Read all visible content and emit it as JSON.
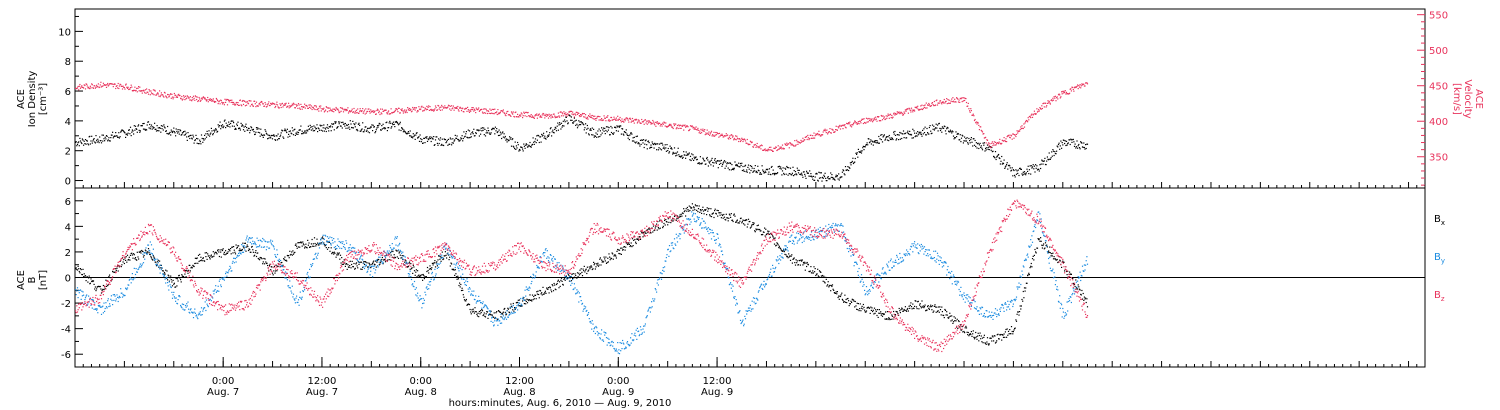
{
  "chart_data": [
    {
      "type": "scatter",
      "panel": "top",
      "ylabel_left": [
        "ACE",
        "Ion Density",
        "[cm⁻³]"
      ],
      "ylabel_right": [
        "ACE",
        "Velocity",
        "[km/s]"
      ],
      "ylim_left": [
        -0.5,
        11.5
      ],
      "ylim_right": [
        306,
        558
      ],
      "yticks_left": [
        "0",
        "2",
        "4",
        "6",
        "8",
        "10"
      ],
      "yticks_right": [
        "350",
        "400",
        "450",
        "500",
        "550"
      ],
      "series": [
        {
          "color": "#000000",
          "axis": "left",
          "x": [
            0,
            3,
            6,
            9,
            12,
            15,
            18,
            21,
            24,
            27,
            30,
            33,
            36,
            39,
            42,
            45,
            48,
            51,
            54,
            57,
            60,
            63,
            66,
            69,
            72,
            75,
            78,
            81,
            84,
            87,
            90,
            93,
            96,
            99,
            102,
            105,
            108,
            111,
            114,
            117,
            120,
            123
          ],
          "y": [
            2.6,
            2.8,
            3.2,
            3.8,
            3.3,
            2.7,
            3.9,
            3.5,
            3.0,
            3.4,
            3.6,
            3.8,
            3.5,
            3.8,
            2.8,
            2.6,
            3.2,
            3.4,
            2.2,
            3.0,
            4.2,
            3.2,
            3.5,
            2.5,
            2.2,
            1.5,
            1.2,
            0.9,
            0.7,
            0.7,
            0.3,
            0.3,
            2.5,
            3.0,
            3.2,
            3.6,
            2.8,
            2.2,
            0.5,
            0.9,
            2.6,
            2.4
          ]
        },
        {
          "color": "#e8335c",
          "axis": "right",
          "x": [
            0,
            3,
            6,
            9,
            12,
            15,
            18,
            21,
            24,
            27,
            30,
            33,
            36,
            39,
            42,
            45,
            48,
            51,
            54,
            57,
            60,
            63,
            66,
            69,
            72,
            75,
            78,
            81,
            84,
            87,
            90,
            93,
            96,
            99,
            102,
            105,
            108,
            111,
            114,
            117,
            120,
            123
          ],
          "y": [
            448,
            452,
            450,
            442,
            436,
            432,
            428,
            426,
            424,
            422,
            418,
            416,
            414,
            415,
            418,
            420,
            417,
            414,
            410,
            408,
            412,
            406,
            404,
            400,
            395,
            390,
            382,
            375,
            360,
            368,
            382,
            392,
            402,
            408,
            418,
            428,
            432,
            366,
            380,
            418,
            440,
            455
          ]
        }
      ]
    },
    {
      "type": "scatter",
      "panel": "bottom",
      "ylabel_left": [
        "ACE",
        "B",
        "[nT]"
      ],
      "ylim_left": [
        -7,
        7
      ],
      "yticks_left": [
        "-6",
        "-4",
        "-2",
        "0",
        "2",
        "4",
        "6"
      ],
      "legend": [
        {
          "label": "B",
          "sub": "x",
          "color": "#000000"
        },
        {
          "label": "B",
          "sub": "y",
          "color": "#1a8be0"
        },
        {
          "label": "B",
          "sub": "z",
          "color": "#e8335c"
        }
      ],
      "series": [
        {
          "color": "#000000",
          "x": [
            0,
            3,
            6,
            9,
            12,
            15,
            18,
            21,
            24,
            27,
            30,
            33,
            36,
            39,
            42,
            45,
            48,
            51,
            54,
            57,
            60,
            63,
            66,
            69,
            72,
            75,
            78,
            81,
            84,
            87,
            90,
            93,
            96,
            99,
            102,
            105,
            108,
            111,
            114,
            117,
            120,
            123
          ],
          "y": [
            1.0,
            -1.0,
            1.5,
            2.0,
            -0.5,
            1.5,
            2.0,
            2.5,
            0.5,
            2.5,
            3.0,
            1.0,
            1.0,
            2.0,
            0.0,
            2.0,
            -2.5,
            -3.0,
            -2.0,
            -1.0,
            0.0,
            1.0,
            2.0,
            3.5,
            4.5,
            5.5,
            5.0,
            4.5,
            3.5,
            1.5,
            0.5,
            -1.5,
            -2.5,
            -3.0,
            -2.0,
            -2.5,
            -4.0,
            -5.0,
            -4.0,
            3.0,
            1.0,
            -2.0
          ]
        },
        {
          "color": "#1a8be0",
          "x": [
            0,
            3,
            6,
            9,
            12,
            15,
            18,
            21,
            24,
            27,
            30,
            33,
            36,
            39,
            42,
            45,
            48,
            51,
            54,
            57,
            60,
            63,
            66,
            69,
            72,
            75,
            78,
            81,
            84,
            87,
            90,
            93,
            96,
            99,
            102,
            105,
            108,
            111,
            114,
            117,
            120,
            123
          ],
          "y": [
            -1.0,
            -2.5,
            -1.0,
            2.5,
            -1.5,
            -3.0,
            0.0,
            3.0,
            2.5,
            -2.0,
            3.0,
            2.5,
            0.5,
            3.0,
            -2.0,
            2.5,
            -1.0,
            -3.5,
            -2.0,
            2.0,
            0.0,
            -4.0,
            -5.5,
            -4.0,
            2.0,
            5.0,
            3.0,
            -3.5,
            0.0,
            3.0,
            3.5,
            4.0,
            -1.0,
            1.0,
            2.5,
            1.5,
            -1.5,
            -3.0,
            -2.0,
            5.0,
            -3.0,
            1.5
          ]
        },
        {
          "color": "#e8335c",
          "x": [
            0,
            3,
            6,
            9,
            12,
            15,
            18,
            21,
            24,
            27,
            30,
            33,
            36,
            39,
            42,
            45,
            48,
            51,
            54,
            57,
            60,
            63,
            66,
            69,
            72,
            75,
            78,
            81,
            84,
            87,
            90,
            93,
            96,
            99,
            102,
            105,
            108,
            111,
            114,
            117,
            120,
            123
          ],
          "y": [
            -2.5,
            -1.5,
            2.0,
            4.0,
            2.0,
            -1.0,
            -2.5,
            -2.0,
            1.0,
            0.0,
            -2.0,
            1.5,
            2.5,
            1.0,
            1.5,
            2.5,
            0.5,
            1.0,
            2.5,
            1.0,
            0.5,
            4.0,
            3.0,
            3.5,
            5.0,
            3.5,
            1.5,
            -0.5,
            3.0,
            4.0,
            3.5,
            3.5,
            1.0,
            -2.5,
            -4.5,
            -5.5,
            -3.5,
            2.0,
            6.0,
            4.5,
            1.0,
            -3.0
          ]
        }
      ]
    }
  ],
  "xaxis": {
    "range_hours": [
      0,
      164
    ],
    "ticks": [
      {
        "h": 18,
        "line1": "0:00",
        "line2": "Aug. 7"
      },
      {
        "h": 30,
        "line1": "12:00",
        "line2": "Aug. 7"
      },
      {
        "h": 42,
        "line1": "0:00",
        "line2": "Aug. 8"
      },
      {
        "h": 54,
        "line1": "12:00",
        "line2": "Aug. 8"
      },
      {
        "h": 66,
        "line1": "0:00",
        "line2": "Aug. 9"
      },
      {
        "h": 78,
        "line1": "12:00",
        "line2": "Aug. 9"
      }
    ],
    "title": "hours:minutes, Aug. 6, 2010 — Aug. 9, 2010"
  }
}
